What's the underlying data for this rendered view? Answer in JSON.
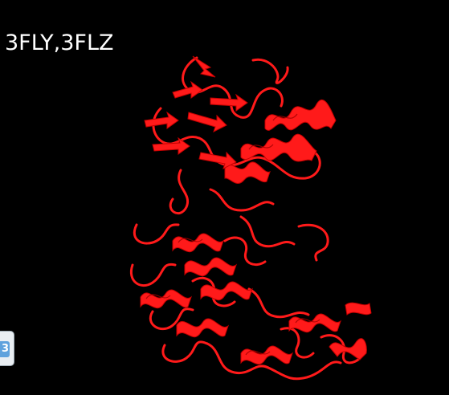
{
  "title": "3FLY,3FLZ",
  "side_tab": {
    "glyph": "3",
    "icon": "side-panel-toggle-icon"
  },
  "colors": {
    "background": "#000000",
    "title": "#ffffff",
    "ribbon": "#ff1a1a",
    "ribbon_shade": "#c40000",
    "tab_fill": "#e9eef2",
    "tab_accent": "#5fa2dd"
  }
}
